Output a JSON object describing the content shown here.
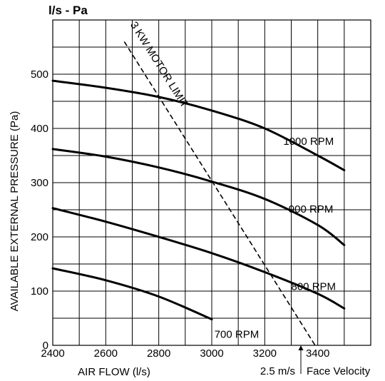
{
  "chart_data": {
    "type": "line",
    "title": "l/s - Pa",
    "xlabel": "AIR FLOW (l/s)",
    "ylabel": "AVAILABLE EXTERNAL PRESSURE (Pa)",
    "xlim": [
      2400,
      3600
    ],
    "ylim": [
      0,
      600
    ],
    "grid": true,
    "x_ticks": [
      2400,
      2600,
      2800,
      3000,
      3200,
      3400
    ],
    "y_ticks": [
      0,
      100,
      200,
      300,
      400,
      500
    ],
    "series": [
      {
        "name": "1000 RPM",
        "x": [
          2400,
          2600,
          2800,
          3000,
          3200,
          3400,
          3500
        ],
        "y": [
          488,
          475,
          458,
          433,
          400,
          350,
          323
        ]
      },
      {
        "name": "900 RPM",
        "x": [
          2400,
          2600,
          2800,
          3000,
          3200,
          3400,
          3500
        ],
        "y": [
          362,
          348,
          328,
          302,
          270,
          222,
          185
        ]
      },
      {
        "name": "800 RPM",
        "x": [
          2400,
          2600,
          2800,
          3000,
          3200,
          3400,
          3500
        ],
        "y": [
          253,
          228,
          200,
          170,
          135,
          95,
          68
        ]
      },
      {
        "name": "700 RPM",
        "x": [
          2400,
          2600,
          2800,
          3000
        ],
        "y": [
          142,
          120,
          90,
          48
        ]
      }
    ],
    "motor_limit": {
      "label": "3 KW MOTOR LIMIT",
      "x": [
        2670,
        3390
      ],
      "y": [
        560,
        0
      ]
    },
    "face_velocity": {
      "value_label": "2.5 m/s",
      "label": "Face Velocity"
    }
  }
}
